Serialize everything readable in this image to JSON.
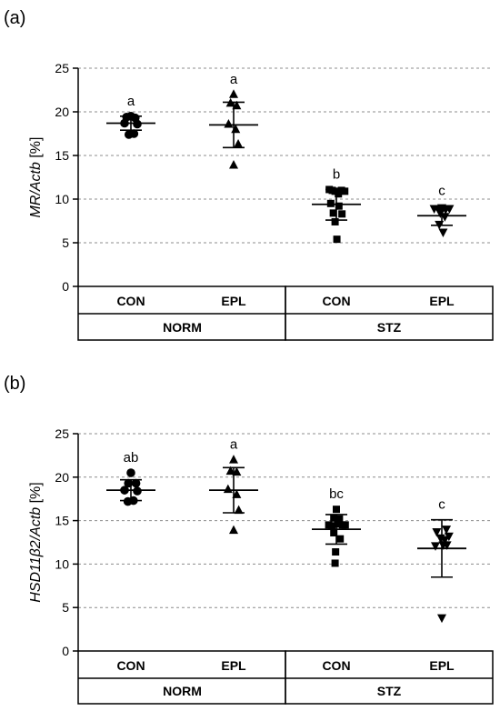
{
  "chart_data": [
    {
      "type": "scatter",
      "panel_label": "(a)",
      "ylabel_italic": "MR/Actb",
      "ylabel_unit": " [%]",
      "ylim": [
        0,
        25
      ],
      "yticks": [
        0,
        5,
        10,
        15,
        20,
        25
      ],
      "grid": "dashed horizontal",
      "categories": [
        "CON",
        "EPL",
        "CON",
        "EPL"
      ],
      "groups": [
        {
          "label": "NORM",
          "span": [
            0,
            1
          ]
        },
        {
          "label": "STZ",
          "span": [
            2,
            3
          ]
        }
      ],
      "series": [
        {
          "category": "CON",
          "group": "NORM",
          "marker": "circle",
          "mean": 18.7,
          "sd_low": 17.9,
          "sd_high": 19.5,
          "significance": "a",
          "points": [
            [
              -0.17,
              19.4
            ],
            [
              0.0,
              19.5
            ],
            [
              0.17,
              19.3
            ],
            [
              -0.25,
              18.7
            ],
            [
              0.25,
              18.6
            ],
            [
              -0.08,
              17.4
            ],
            [
              0.12,
              17.5
            ]
          ]
        },
        {
          "category": "EPL",
          "group": "NORM",
          "marker": "triangle-up",
          "mean": 18.5,
          "sd_low": 15.9,
          "sd_high": 21.1,
          "significance": "a",
          "points": [
            [
              0.0,
              22.0
            ],
            [
              -0.12,
              21.0
            ],
            [
              0.12,
              20.7
            ],
            [
              -0.2,
              18.6
            ],
            [
              0.08,
              18.0
            ],
            [
              0.18,
              16.3
            ],
            [
              0.0,
              13.9
            ]
          ]
        },
        {
          "category": "CON",
          "group": "STZ",
          "marker": "square",
          "mean": 9.4,
          "sd_low": 7.6,
          "sd_high": 11.1,
          "significance": "b",
          "points": [
            [
              -0.28,
              11.1
            ],
            [
              -0.16,
              11.0
            ],
            [
              -0.05,
              10.9
            ],
            [
              0.08,
              10.6
            ],
            [
              0.2,
              11.0
            ],
            [
              0.33,
              10.9
            ],
            [
              -0.22,
              9.5
            ],
            [
              0.1,
              9.2
            ],
            [
              -0.12,
              8.4
            ],
            [
              0.22,
              8.3
            ],
            [
              -0.05,
              7.4
            ],
            [
              0.02,
              5.4
            ]
          ]
        },
        {
          "category": "EPL",
          "group": "STZ",
          "marker": "triangle-down",
          "mean": 8.1,
          "sd_low": 7.0,
          "sd_high": 9.2,
          "significance": "c",
          "points": [
            [
              -0.3,
              8.9
            ],
            [
              -0.15,
              8.9
            ],
            [
              0.0,
              9.0
            ],
            [
              0.15,
              8.8
            ],
            [
              0.3,
              8.9
            ],
            [
              -0.06,
              8.4
            ],
            [
              0.12,
              8.0
            ],
            [
              -0.1,
              7.1
            ],
            [
              0.05,
              6.2
            ]
          ]
        }
      ]
    },
    {
      "type": "scatter",
      "panel_label": "(b)",
      "ylabel_italic": "HSD11β2/Actb",
      "ylabel_unit": " [%]",
      "ylim": [
        0,
        25
      ],
      "yticks": [
        0,
        5,
        10,
        15,
        20,
        25
      ],
      "grid": "dashed horizontal",
      "categories": [
        "CON",
        "EPL",
        "CON",
        "EPL"
      ],
      "groups": [
        {
          "label": "NORM",
          "span": [
            0,
            1
          ]
        },
        {
          "label": "STZ",
          "span": [
            2,
            3
          ]
        }
      ],
      "series": [
        {
          "category": "CON",
          "group": "NORM",
          "marker": "circle",
          "mean": 18.5,
          "sd_low": 17.3,
          "sd_high": 19.7,
          "significance": "ab",
          "points": [
            [
              0.0,
              20.5
            ],
            [
              -0.1,
              19.3
            ],
            [
              0.2,
              19.3
            ],
            [
              -0.25,
              18.5
            ],
            [
              0.25,
              18.4
            ],
            [
              -0.12,
              17.2
            ],
            [
              0.1,
              17.3
            ]
          ]
        },
        {
          "category": "EPL",
          "group": "NORM",
          "marker": "triangle-up",
          "mean": 18.5,
          "sd_low": 15.9,
          "sd_high": 21.1,
          "significance": "a",
          "points": [
            [
              0.0,
              22.0
            ],
            [
              -0.12,
              20.7
            ],
            [
              0.12,
              20.6
            ],
            [
              -0.22,
              18.6
            ],
            [
              0.12,
              18.0
            ],
            [
              0.2,
              16.2
            ],
            [
              0.0,
              13.9
            ]
          ]
        },
        {
          "category": "CON",
          "group": "STZ",
          "marker": "square",
          "mean": 14.0,
          "sd_low": 12.3,
          "sd_high": 15.7,
          "significance": "bc",
          "points": [
            [
              0.0,
              16.3
            ],
            [
              -0.1,
              15.3
            ],
            [
              0.12,
              15.2
            ],
            [
              -0.3,
              14.5
            ],
            [
              -0.18,
              14.4
            ],
            [
              0.05,
              14.6
            ],
            [
              0.25,
              14.5
            ],
            [
              0.35,
              14.5
            ],
            [
              -0.1,
              13.6
            ],
            [
              0.15,
              12.9
            ],
            [
              -0.03,
              11.4
            ],
            [
              -0.05,
              10.1
            ]
          ]
        },
        {
          "category": "EPL",
          "group": "STZ",
          "marker": "triangle-down",
          "mean": 11.8,
          "sd_low": 8.5,
          "sd_high": 15.1,
          "significance": "c",
          "points": [
            [
              -0.2,
              13.7
            ],
            [
              0.18,
              14.0
            ],
            [
              -0.05,
              13.0
            ],
            [
              0.12,
              12.8
            ],
            [
              0.28,
              13.2
            ],
            [
              -0.25,
              12.1
            ],
            [
              0.05,
              12.2
            ],
            [
              0.2,
              12.2
            ],
            [
              0.0,
              3.8
            ]
          ]
        }
      ]
    }
  ]
}
